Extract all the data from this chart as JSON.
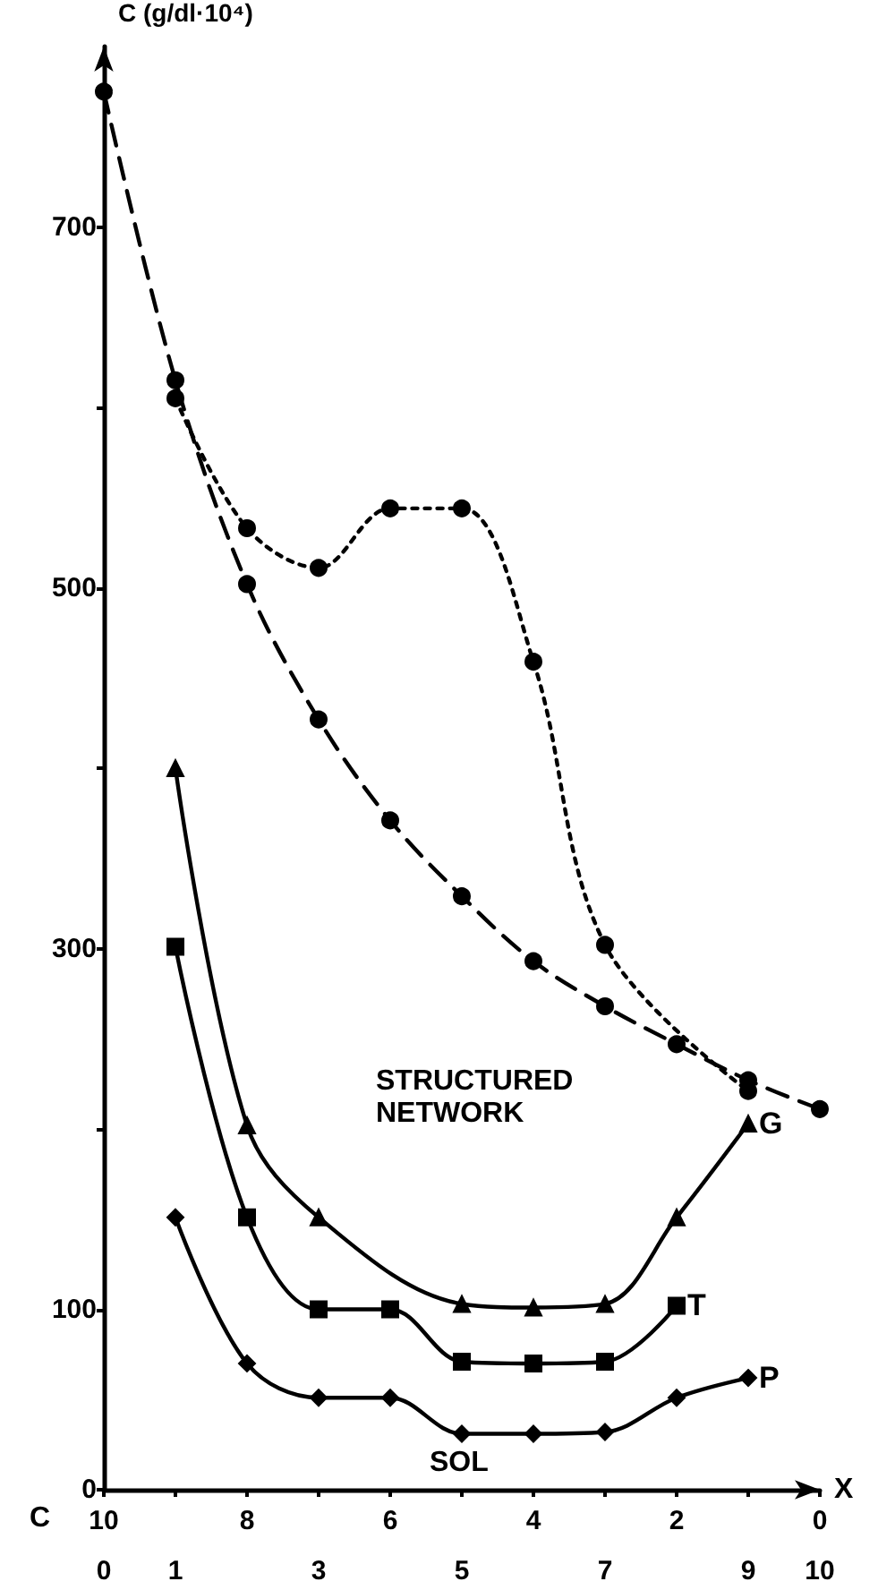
{
  "chart_data": {
    "type": "line",
    "ylabel": "C (g/dl·10⁴)",
    "xlabel": "X",
    "x2label": "C",
    "xlim": [
      0,
      10
    ],
    "xticks": [
      0,
      1,
      3,
      5,
      7,
      9,
      10
    ],
    "x2lim": [
      10,
      0
    ],
    "x2ticks": [
      10,
      {
        "value": 9,
        "label": null
      },
      8,
      {
        "value": 7,
        "label": null
      },
      6,
      {
        "value": 5,
        "label": null
      },
      4,
      {
        "value": 3,
        "label": null
      },
      2,
      {
        "value": 1,
        "label": null
      },
      0
    ],
    "ylim": [
      0,
      800
    ],
    "yticks": [
      0,
      100,
      {
        "value": 200,
        "label": null
      },
      300,
      {
        "value": 400,
        "label": null
      },
      500,
      {
        "value": 600,
        "label": null
      },
      700
    ],
    "grid": false,
    "annotations": [
      "STRUCTURED NETWORK",
      "SOL"
    ],
    "series": [
      {
        "color": "#000000",
        "marker": "circle",
        "line_style": "dashed",
        "x": [
          0,
          1,
          2,
          3,
          4,
          5,
          6,
          7,
          8,
          9,
          10
        ],
        "values": [
          775,
          615,
          502,
          427,
          371,
          329,
          293,
          268,
          247,
          227,
          211
        ]
      },
      {
        "color": "#000000",
        "marker": "circle",
        "line_style": "dotted",
        "x": [
          1,
          2,
          3,
          4,
          5,
          6,
          7,
          9
        ],
        "values": [
          605,
          533,
          511,
          544,
          544,
          459,
          302,
          221
        ]
      },
      {
        "name": "G",
        "color": "#000000",
        "marker": "triangle",
        "line_style": "solid",
        "x": [
          1,
          2,
          3,
          5,
          6,
          7,
          8,
          9
        ],
        "values": [
          400,
          202,
          151,
          103,
          101,
          103,
          151,
          203
        ]
      },
      {
        "name": "T",
        "color": "#000000",
        "marker": "square",
        "line_style": "solid",
        "x": [
          1,
          2,
          3,
          4,
          5,
          6,
          7,
          8
        ],
        "values": [
          301,
          151,
          100,
          100,
          71,
          70,
          71,
          102
        ]
      },
      {
        "name": "P",
        "color": "#000000",
        "marker": "diamond",
        "line_style": "solid",
        "x": [
          1,
          2,
          3,
          4,
          5,
          6,
          7,
          8,
          9
        ],
        "values": [
          151,
          70,
          51,
          51,
          31,
          31,
          32,
          51,
          62
        ]
      }
    ]
  }
}
